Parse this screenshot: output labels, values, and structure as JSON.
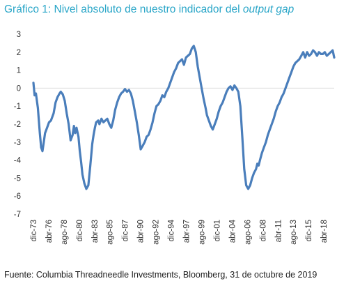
{
  "header": {
    "title_prefix": "Gráfico 1: Nivel absoluto de nuestro indicador del ",
    "title_italic": "output gap"
  },
  "footer": {
    "source": "Fuente: Columbia Threadneedle Investments, Bloomberg, 31 de octubre de 2019"
  },
  "colors": {
    "line": "#4a7ebb",
    "title": "#2aa6c8",
    "zero_line": "#d9d9d9"
  },
  "chart_data": {
    "type": "line",
    "title": "Gráfico 1: Nivel absoluto de nuestro indicador del output gap",
    "xlabel": "",
    "ylabel": "",
    "ylim": [
      -7,
      3
    ],
    "yticks": [
      3,
      2,
      1,
      0,
      -1,
      -2,
      -3,
      -4,
      -5,
      -6,
      -7
    ],
    "xlim": [
      1973.92,
      2019.83
    ],
    "xticks": [
      {
        "label": "dic-73",
        "x": 1973.92
      },
      {
        "label": "abr-76",
        "x": 1976.25
      },
      {
        "label": "ago-78",
        "x": 1978.58
      },
      {
        "label": "dic-80",
        "x": 1980.92
      },
      {
        "label": "abr-83",
        "x": 1983.25
      },
      {
        "label": "ago-85",
        "x": 1985.58
      },
      {
        "label": "dic-87",
        "x": 1987.92
      },
      {
        "label": "abr-90",
        "x": 1990.25
      },
      {
        "label": "ago-92",
        "x": 1992.58
      },
      {
        "label": "dic-94",
        "x": 1994.92
      },
      {
        "label": "abr-97",
        "x": 1997.25
      },
      {
        "label": "ago-99",
        "x": 1999.58
      },
      {
        "label": "dic-01",
        "x": 2001.92
      },
      {
        "label": "abr-04",
        "x": 2004.25
      },
      {
        "label": "ago-06",
        "x": 2006.58
      },
      {
        "label": "dic-08",
        "x": 2008.92
      },
      {
        "label": "abr-11",
        "x": 2011.25
      },
      {
        "label": "ago-13",
        "x": 2013.58
      },
      {
        "label": "dic-15",
        "x": 2015.92
      },
      {
        "label": "abr-18",
        "x": 2018.25
      }
    ],
    "series": [
      {
        "x": [
          1973.92,
          1974.1,
          1974.3,
          1974.6,
          1974.9,
          1975.1,
          1975.3,
          1975.5,
          1975.7,
          1976.0,
          1976.3,
          1976.6,
          1977.0,
          1977.3,
          1977.6,
          1977.9,
          1978.1,
          1978.4,
          1978.7,
          1979.0,
          1979.3,
          1979.6,
          1979.9,
          1980.1,
          1980.3,
          1980.5,
          1980.8,
          1981.0,
          1981.2,
          1981.4,
          1981.7,
          1982.0,
          1982.3,
          1982.6,
          1982.9,
          1983.1,
          1983.3,
          1983.5,
          1983.8,
          1984.0,
          1984.3,
          1984.6,
          1984.9,
          1985.2,
          1985.5,
          1985.8,
          1986.1,
          1986.4,
          1986.7,
          1987.0,
          1987.3,
          1987.6,
          1987.9,
          1988.2,
          1988.5,
          1988.8,
          1989.1,
          1989.4,
          1989.7,
          1990.0,
          1990.3,
          1990.6,
          1990.9,
          1991.2,
          1991.5,
          1991.8,
          1992.1,
          1992.4,
          1992.7,
          1993.0,
          1993.3,
          1993.6,
          1993.9,
          1994.2,
          1994.5,
          1994.8,
          1995.1,
          1995.4,
          1995.7,
          1996.0,
          1996.3,
          1996.6,
          1996.9,
          1997.2,
          1997.5,
          1997.8,
          1998.1,
          1998.4,
          1998.7,
          1999.0,
          1999.3,
          1999.6,
          1999.9,
          2000.2,
          2000.4,
          2000.7,
          2001.0,
          2001.3,
          2001.6,
          2001.9,
          2002.2,
          2002.5,
          2002.8,
          2003.1,
          2003.4,
          2003.7,
          2004.0,
          2004.3,
          2004.6,
          2004.9,
          2005.2,
          2005.5,
          2005.8,
          2006.1,
          2006.4,
          2006.7,
          2007.0,
          2007.3,
          2007.6,
          2007.9,
          2008.1,
          2008.3,
          2008.5,
          2008.8,
          2009.1,
          2009.4,
          2009.7,
          2010.0,
          2010.3,
          2010.6,
          2010.9,
          2011.2,
          2011.5,
          2011.8,
          2012.1,
          2012.4,
          2012.7,
          2013.0,
          2013.3,
          2013.6,
          2013.9,
          2014.2,
          2014.5,
          2014.8,
          2015.1,
          2015.4,
          2015.7,
          2016.0,
          2016.3,
          2016.6,
          2016.9,
          2017.2,
          2017.5,
          2017.8,
          2018.1,
          2018.4,
          2018.7,
          2019.0,
          2019.3,
          2019.6,
          2019.83
        ],
        "y": [
          0.3,
          -0.4,
          -0.3,
          -1.1,
          -2.5,
          -3.3,
          -3.5,
          -3.0,
          -2.5,
          -2.2,
          -1.9,
          -1.8,
          -1.4,
          -0.8,
          -0.5,
          -0.3,
          -0.2,
          -0.35,
          -0.7,
          -1.4,
          -2.0,
          -2.9,
          -2.6,
          -2.1,
          -2.5,
          -2.2,
          -2.7,
          -3.5,
          -4.1,
          -4.8,
          -5.3,
          -5.6,
          -5.4,
          -4.3,
          -3.1,
          -2.6,
          -2.2,
          -1.9,
          -1.8,
          -2.0,
          -1.7,
          -1.9,
          -1.8,
          -1.7,
          -2.0,
          -2.2,
          -1.8,
          -1.2,
          -0.8,
          -0.5,
          -0.3,
          -0.2,
          -0.05,
          -0.2,
          -0.1,
          -0.3,
          -0.7,
          -1.3,
          -1.9,
          -2.6,
          -3.4,
          -3.2,
          -3.0,
          -2.7,
          -2.6,
          -2.3,
          -1.9,
          -1.4,
          -1.0,
          -0.9,
          -0.7,
          -0.4,
          -0.5,
          -0.2,
          0.0,
          0.3,
          0.6,
          0.9,
          1.1,
          1.4,
          1.5,
          1.6,
          1.3,
          1.7,
          1.8,
          1.9,
          2.2,
          2.35,
          2.0,
          1.2,
          0.6,
          0.0,
          -0.6,
          -1.1,
          -1.5,
          -1.8,
          -2.1,
          -2.3,
          -2.0,
          -1.7,
          -1.3,
          -1.0,
          -0.8,
          -0.5,
          -0.2,
          0.0,
          0.1,
          -0.1,
          0.15,
          0.0,
          -0.2,
          -1.0,
          -2.7,
          -4.5,
          -5.4,
          -5.6,
          -5.4,
          -5.0,
          -4.7,
          -4.5,
          -4.2,
          -4.3,
          -4.0,
          -3.6,
          -3.3,
          -3.0,
          -2.6,
          -2.3,
          -2.0,
          -1.7,
          -1.3,
          -1.0,
          -0.8,
          -0.5,
          -0.3,
          0.0,
          0.3,
          0.6,
          0.9,
          1.2,
          1.4,
          1.5,
          1.6,
          1.8,
          2.0,
          1.7,
          2.0,
          1.8,
          1.9,
          2.1,
          2.0,
          1.8,
          2.0,
          1.9,
          1.9,
          2.0,
          1.8,
          1.9,
          2.0,
          2.1,
          1.7
        ]
      }
    ]
  }
}
